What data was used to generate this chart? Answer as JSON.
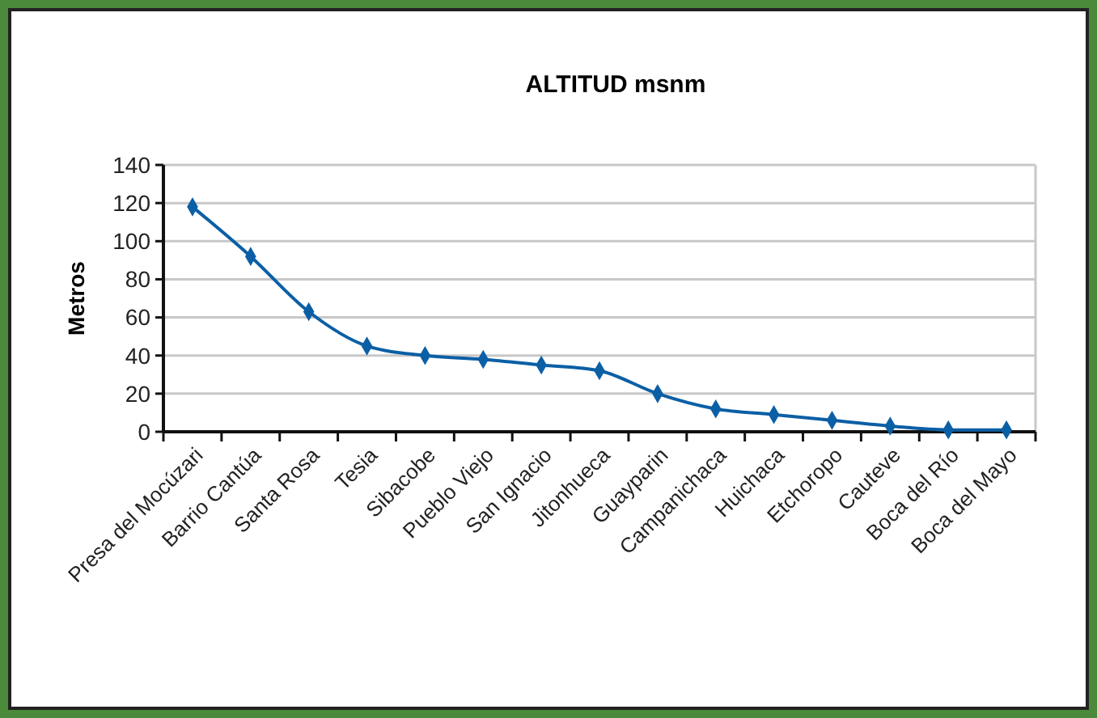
{
  "chart_data": {
    "type": "line",
    "title": "ALTITUD msnm",
    "ylabel": "Metros",
    "categories": [
      "Presa del Mocúzari",
      "Barrio Cantúa",
      "Santa Rosa",
      "Tesia",
      "Sibacobe",
      "Pueblo Viejo",
      "San Ignacio",
      "Jitonhueca",
      "Guayparin",
      "Campanichaca",
      "Huichaca",
      "Etchoropo",
      "Cauteve",
      "Boca del Río",
      "Boca del Mayo"
    ],
    "series": [
      {
        "color": "#0b5fa5",
        "values": [
          118,
          92,
          63,
          45,
          40,
          38,
          35,
          32,
          20,
          12,
          9,
          6,
          3,
          1,
          1
        ]
      }
    ],
    "ylim": [
      0,
      140
    ],
    "yticks": [
      0,
      20,
      40,
      60,
      80,
      100,
      120,
      140
    ],
    "grid": "y",
    "marker": "diamond",
    "line_style": "solid"
  }
}
